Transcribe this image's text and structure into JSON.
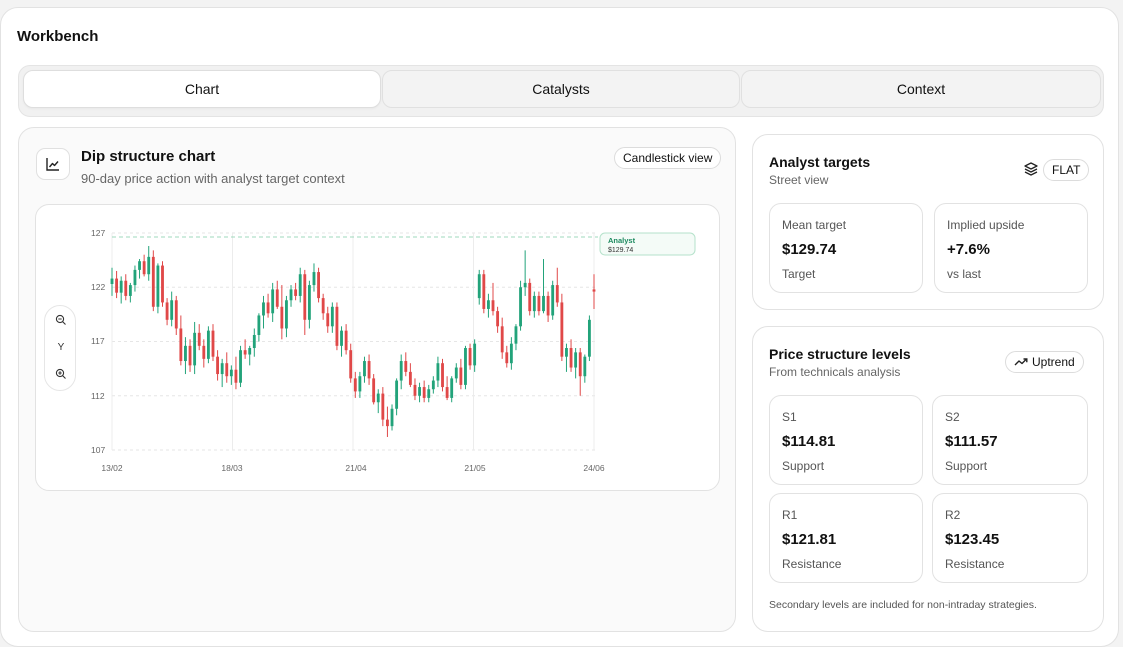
{
  "app": {
    "title": "Workbench"
  },
  "tabs": [
    {
      "label": "Chart",
      "active": true
    },
    {
      "label": "Catalysts",
      "active": false
    },
    {
      "label": "Context",
      "active": false
    }
  ],
  "chart_card": {
    "title": "Dip structure chart",
    "subtitle": "90-day price action with analyst target context",
    "view_button": "Candlestick view",
    "icon": "line-chart-icon",
    "zoom": {
      "zoom_out_icon": "zoom-out-icon",
      "axis_label": "Y",
      "zoom_in_icon": "zoom-in-icon"
    }
  },
  "chart_data": {
    "type": "candlestick",
    "y_ticks": [
      "127",
      "122",
      "117",
      "112",
      "107"
    ],
    "x_ticks": [
      "13/02",
      "18/03",
      "21/04",
      "21/05",
      "24/06"
    ],
    "ylim": [
      107,
      127
    ],
    "grid": true,
    "target_line": {
      "label": "Analyst",
      "value_label": "$129.74"
    },
    "colors": {
      "up": "#22a37a",
      "down": "#e04848",
      "target": "#9fd9bd"
    },
    "candles": [
      [
        122.3,
        123.8,
        121.2,
        122.8
      ],
      [
        122.8,
        123.5,
        121.0,
        121.5
      ],
      [
        121.5,
        123.0,
        120.5,
        122.6
      ],
      [
        122.6,
        123.2,
        120.8,
        121.2
      ],
      [
        121.2,
        122.4,
        120.6,
        122.2
      ],
      [
        122.2,
        124.0,
        121.6,
        123.6
      ],
      [
        123.6,
        124.6,
        122.8,
        124.4
      ],
      [
        124.4,
        125.0,
        123.0,
        123.2
      ],
      [
        123.2,
        125.8,
        122.6,
        124.8
      ],
      [
        124.8,
        125.4,
        119.8,
        120.2
      ],
      [
        120.2,
        124.2,
        119.6,
        124.0
      ],
      [
        124.0,
        124.4,
        120.2,
        120.6
      ],
      [
        120.6,
        121.0,
        118.5,
        119.0
      ],
      [
        119.0,
        121.6,
        118.4,
        120.8
      ],
      [
        120.8,
        121.2,
        117.6,
        118.2
      ],
      [
        118.2,
        119.4,
        114.8,
        115.2
      ],
      [
        115.2,
        117.4,
        114.0,
        116.6
      ],
      [
        116.6,
        117.2,
        114.2,
        114.8
      ],
      [
        114.8,
        118.8,
        114.0,
        117.8
      ],
      [
        117.8,
        118.6,
        116.2,
        116.6
      ],
      [
        116.6,
        117.2,
        114.6,
        115.4
      ],
      [
        115.4,
        118.4,
        115.0,
        118.0
      ],
      [
        118.0,
        118.6,
        115.2,
        115.6
      ],
      [
        115.6,
        116.2,
        113.4,
        114.0
      ],
      [
        114.0,
        115.4,
        112.8,
        115.0
      ],
      [
        115.0,
        116.0,
        113.2,
        113.8
      ],
      [
        113.8,
        114.8,
        113.0,
        114.4
      ],
      [
        114.4,
        115.6,
        112.6,
        113.2
      ],
      [
        113.2,
        116.6,
        112.8,
        116.2
      ],
      [
        116.2,
        117.2,
        115.4,
        115.8
      ],
      [
        115.8,
        116.6,
        114.8,
        116.4
      ],
      [
        116.4,
        118.2,
        115.6,
        117.6
      ],
      [
        117.6,
        119.6,
        117.0,
        119.4
      ],
      [
        119.4,
        121.2,
        118.2,
        120.6
      ],
      [
        120.6,
        121.4,
        119.2,
        119.6
      ],
      [
        119.6,
        122.4,
        118.8,
        121.8
      ],
      [
        121.8,
        122.6,
        120.0,
        120.2
      ],
      [
        120.2,
        122.2,
        117.2,
        118.2
      ],
      [
        118.2,
        121.2,
        117.4,
        120.8
      ],
      [
        120.8,
        122.2,
        120.2,
        121.8
      ],
      [
        121.8,
        122.4,
        120.8,
        121.2
      ],
      [
        121.2,
        123.8,
        120.6,
        123.2
      ],
      [
        123.2,
        123.6,
        117.6,
        119.0
      ],
      [
        119.0,
        122.6,
        118.2,
        122.2
      ],
      [
        122.2,
        124.2,
        121.6,
        123.4
      ],
      [
        123.4,
        123.8,
        120.6,
        121.0
      ],
      [
        121.0,
        121.4,
        119.0,
        119.6
      ],
      [
        119.6,
        120.2,
        117.8,
        118.4
      ],
      [
        118.4,
        120.6,
        117.8,
        120.2
      ],
      [
        120.2,
        120.6,
        116.2,
        116.6
      ],
      [
        116.6,
        118.4,
        115.6,
        118.0
      ],
      [
        118.0,
        118.6,
        115.8,
        116.2
      ],
      [
        116.2,
        116.8,
        113.2,
        113.6
      ],
      [
        113.6,
        114.2,
        111.8,
        112.4
      ],
      [
        112.4,
        114.2,
        111.8,
        113.8
      ],
      [
        113.8,
        115.6,
        113.2,
        115.2
      ],
      [
        115.2,
        115.8,
        113.0,
        113.6
      ],
      [
        113.6,
        114.0,
        111.2,
        111.4
      ],
      [
        111.4,
        112.6,
        110.4,
        112.2
      ],
      [
        112.2,
        112.8,
        109.2,
        109.8
      ],
      [
        109.8,
        111.0,
        108.2,
        109.2
      ],
      [
        109.2,
        111.2,
        108.8,
        110.8
      ],
      [
        110.8,
        113.6,
        110.2,
        113.4
      ],
      [
        113.4,
        115.8,
        112.6,
        115.2
      ],
      [
        115.2,
        116.0,
        113.8,
        114.2
      ],
      [
        114.2,
        115.0,
        112.8,
        113.0
      ],
      [
        113.0,
        113.6,
        111.6,
        112.0
      ],
      [
        112.0,
        113.2,
        111.4,
        112.8
      ],
      [
        112.8,
        113.4,
        111.4,
        111.8
      ],
      [
        111.8,
        113.0,
        111.4,
        112.6
      ],
      [
        112.6,
        113.8,
        112.2,
        113.4
      ],
      [
        113.4,
        115.6,
        112.8,
        115.0
      ],
      [
        115.0,
        115.4,
        112.4,
        112.8
      ],
      [
        112.8,
        113.8,
        111.6,
        111.8
      ],
      [
        111.8,
        113.8,
        111.4,
        113.6
      ],
      [
        113.6,
        115.0,
        113.2,
        114.6
      ],
      [
        114.6,
        115.4,
        112.6,
        113.0
      ],
      [
        113.0,
        116.6,
        112.6,
        116.4
      ],
      [
        116.4,
        116.8,
        114.4,
        114.8
      ],
      [
        114.8,
        117.2,
        114.2,
        116.8
      ],
      [
        121.0,
        123.6,
        120.4,
        123.2
      ],
      [
        123.2,
        123.6,
        119.6,
        120.0
      ],
      [
        120.0,
        121.4,
        119.2,
        120.8
      ],
      [
        120.8,
        122.4,
        119.4,
        119.8
      ],
      [
        119.8,
        120.2,
        117.8,
        118.4
      ],
      [
        118.4,
        119.2,
        115.4,
        116.0
      ],
      [
        116.0,
        116.6,
        114.6,
        115.0
      ],
      [
        115.0,
        117.4,
        114.4,
        116.8
      ],
      [
        116.8,
        118.6,
        116.2,
        118.4
      ],
      [
        118.4,
        122.6,
        118.0,
        122.0
      ],
      [
        122.0,
        125.4,
        121.2,
        122.4
      ],
      [
        122.4,
        122.8,
        119.4,
        119.8
      ],
      [
        119.8,
        121.6,
        119.2,
        121.2
      ],
      [
        121.2,
        121.6,
        119.4,
        119.8
      ],
      [
        119.8,
        124.6,
        119.6,
        121.2
      ],
      [
        121.2,
        121.6,
        118.8,
        119.4
      ],
      [
        119.4,
        122.6,
        119.0,
        122.2
      ],
      [
        122.2,
        123.8,
        120.2,
        120.6
      ],
      [
        120.6,
        121.4,
        115.2,
        115.6
      ],
      [
        115.6,
        116.8,
        114.2,
        116.4
      ],
      [
        116.4,
        117.2,
        114.2,
        114.6
      ],
      [
        114.6,
        116.4,
        113.6,
        116.0
      ],
      [
        116.0,
        116.4,
        112.0,
        113.8
      ],
      [
        113.8,
        115.8,
        113.2,
        115.6
      ],
      [
        115.6,
        119.4,
        115.2,
        119.0
      ],
      [
        121.8,
        123.2,
        120.0,
        121.6
      ]
    ]
  },
  "analyst_targets": {
    "title": "Analyst targets",
    "subtitle": "Street view",
    "icon": "layers-icon",
    "badge": "FLAT",
    "stats": [
      {
        "label": "Mean target",
        "value": "$129.74",
        "note": "Target"
      },
      {
        "label": "Implied upside",
        "value": "+7.6%",
        "note": "vs last"
      }
    ]
  },
  "price_levels": {
    "title": "Price structure levels",
    "subtitle": "From technicals analysis",
    "trend_badge": "Uptrend",
    "trend_icon": "trending-up-icon",
    "levels": [
      {
        "label": "S1",
        "value": "$114.81",
        "note": "Support"
      },
      {
        "label": "S2",
        "value": "$111.57",
        "note": "Support"
      },
      {
        "label": "R1",
        "value": "$121.81",
        "note": "Resistance"
      },
      {
        "label": "R2",
        "value": "$123.45",
        "note": "Resistance"
      }
    ],
    "footnote": "Secondary levels are included for non-intraday strategies."
  }
}
